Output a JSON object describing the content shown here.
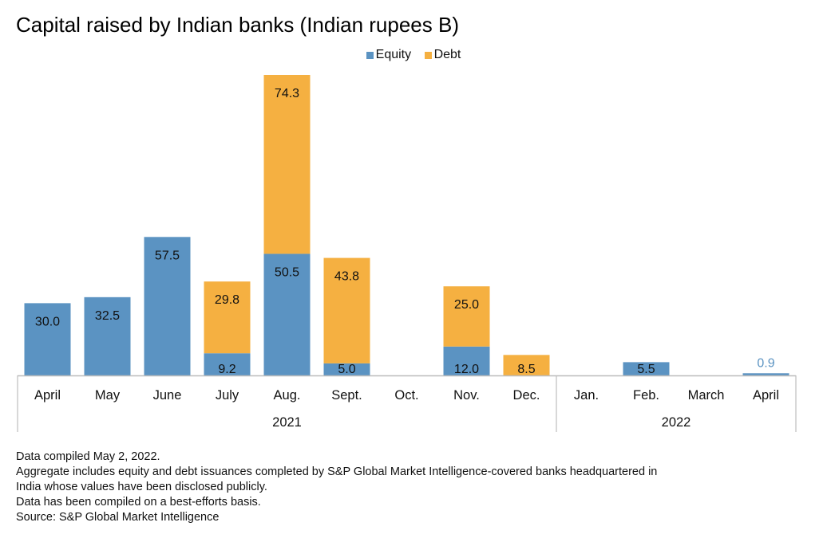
{
  "title": "Capital raised by Indian banks (Indian rupees B)",
  "chart_data": {
    "type": "bar",
    "stacked": true,
    "categories": [
      "April",
      "May",
      "June",
      "July",
      "Aug.",
      "Sept.",
      "Oct.",
      "Nov.",
      "Dec.",
      "Jan.",
      "Feb.",
      "March",
      "April"
    ],
    "groups": [
      {
        "label": "2021",
        "categories": [
          "April",
          "May",
          "June",
          "July",
          "Aug.",
          "Sept.",
          "Oct.",
          "Nov.",
          "Dec."
        ]
      },
      {
        "label": "2022",
        "categories": [
          "Jan.",
          "Feb.",
          "March",
          "April"
        ]
      }
    ],
    "series": [
      {
        "name": "Equity",
        "color": "#5b93c2",
        "values": [
          30.0,
          32.5,
          57.5,
          9.2,
          50.5,
          5.0,
          0,
          12.0,
          0,
          0,
          5.5,
          0,
          0.9
        ]
      },
      {
        "name": "Debt",
        "color": "#f5b041",
        "values": [
          0,
          0,
          0,
          29.8,
          74.3,
          43.8,
          0,
          25.0,
          8.5,
          0,
          0,
          0,
          0
        ]
      }
    ],
    "value_labels": {
      "Equity": [
        "30.0",
        "32.5",
        "57.5",
        "9.2",
        "50.5",
        "5.0",
        "",
        "12.0",
        "",
        "",
        "5.5",
        "",
        "0.9"
      ],
      "Debt": [
        "",
        "",
        "",
        "29.8",
        "74.3",
        "43.8",
        "",
        "25.0",
        "8.5",
        "",
        "",
        "",
        ""
      ]
    },
    "outside_label_color": "#5b93c2",
    "ylim": [
      0,
      125
    ],
    "grid": false,
    "legend_position": "top-center"
  },
  "notes": [
    "Data compiled May 2, 2022.",
    "Aggregate includes equity and debt issuances completed by S&P Global Market Intelligence-covered banks headquartered in",
    "India whose values have been disclosed publicly.",
    "Data has been compiled on a best-efforts basis.",
    "Source: S&P Global Market Intelligence"
  ]
}
